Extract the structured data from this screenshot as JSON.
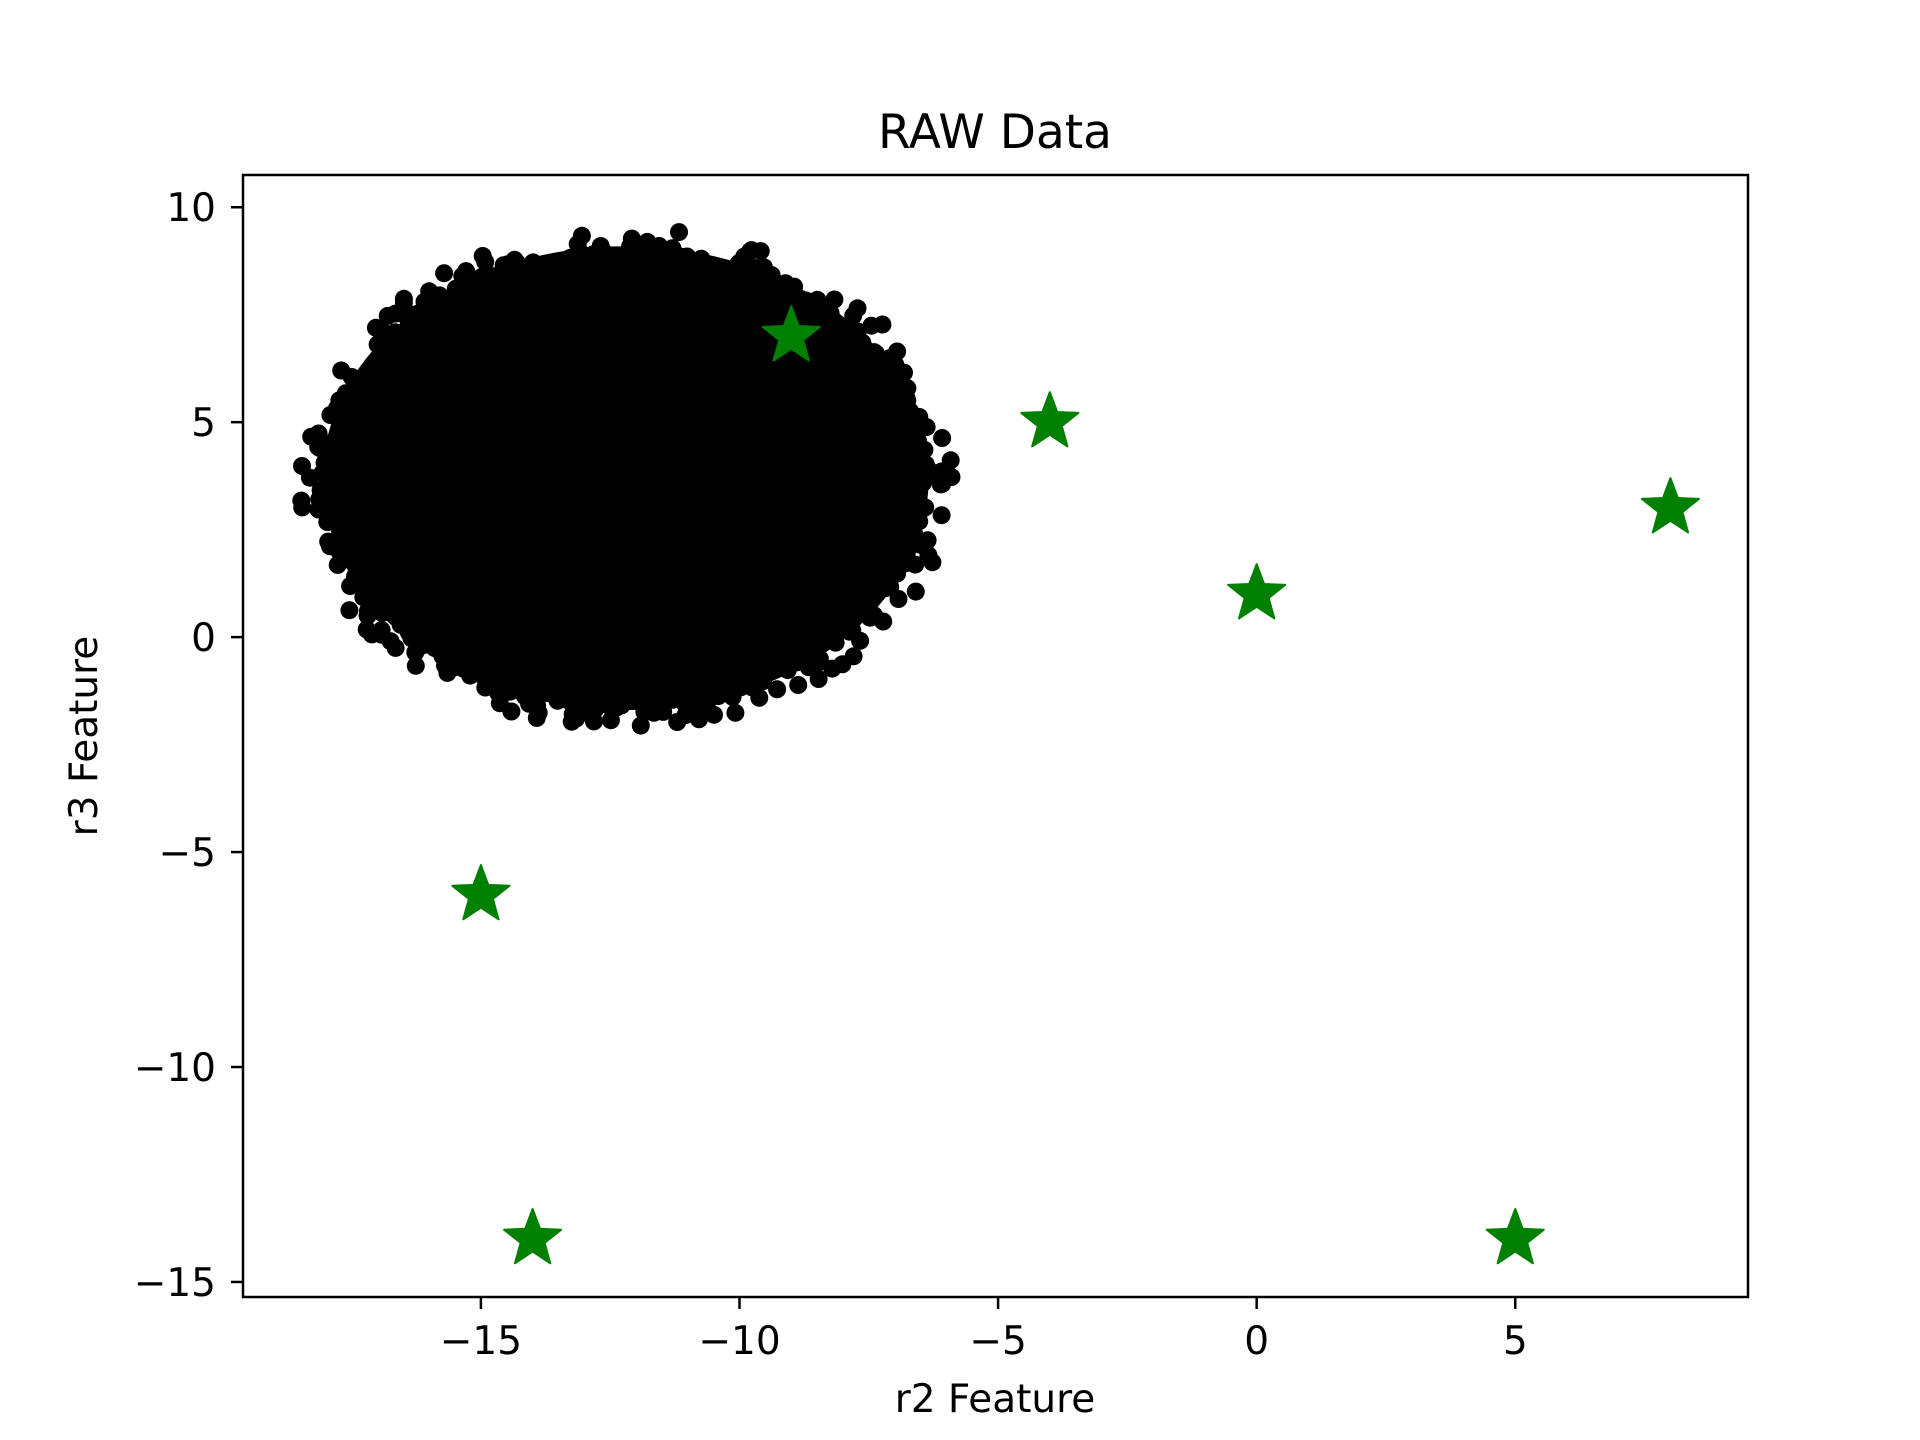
{
  "chart_data": {
    "type": "scatter",
    "title": "RAW Data",
    "xlabel": "r2 Feature",
    "ylabel": "r3 Feature",
    "xlim": [
      -19.6,
      9.5
    ],
    "ylim": [
      -15.35,
      10.75
    ],
    "xticks": [
      -15,
      -10,
      -5,
      0,
      5
    ],
    "xtick_labels": [
      "−15",
      "−10",
      "−5",
      "0",
      "5"
    ],
    "yticks": [
      10,
      5,
      0,
      -5,
      -10,
      -15
    ],
    "ytick_labels": [
      "10",
      "5",
      "0",
      "−5",
      "−10",
      "−15"
    ],
    "grid": false,
    "legend": "none",
    "series": [
      {
        "marker": "circle",
        "color": "#000000",
        "description_region": {
          "x_center": -12.2,
          "y_center": 3.8,
          "x_min": -18.5,
          "x_max": -5.9,
          "y_min": -2.1,
          "y_max": 9.5
        }
      },
      {
        "marker": "star",
        "color": "#008000",
        "points": [
          {
            "x": -9,
            "y": 7
          },
          {
            "x": -4,
            "y": 5
          },
          {
            "x": 8,
            "y": 3
          },
          {
            "x": 0,
            "y": 1
          },
          {
            "x": -15,
            "y": -6
          },
          {
            "x": -14,
            "y": -14
          },
          {
            "x": 5,
            "y": -14
          }
        ]
      }
    ]
  }
}
